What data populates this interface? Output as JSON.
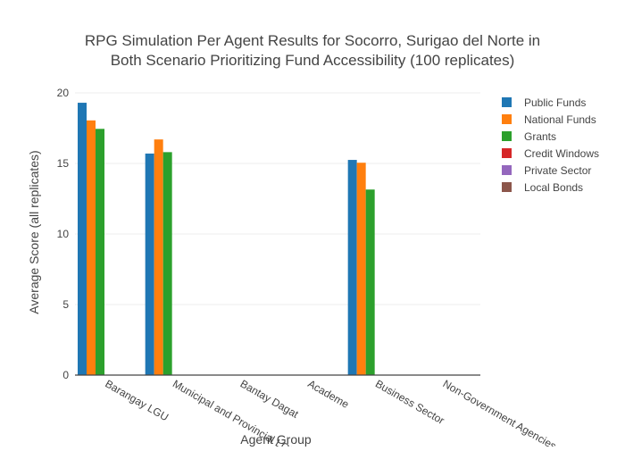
{
  "chart_data": {
    "type": "bar",
    "title_lines": [
      "RPG Simulation Per Agent Results for Socorro, Surigao del Norte in",
      "Both Scenario Prioritizing Fund Accessibility (100 replicates)"
    ],
    "xlabel": "Agent Group",
    "ylabel": "Average Score (all replicates)",
    "ylim": [
      0,
      20
    ],
    "yticks": [
      0,
      5,
      10,
      15,
      20
    ],
    "grid": true,
    "legend_position": "right",
    "categories": [
      "Barangay LGU",
      "Municipal and Provincial LGU",
      "Bantay Dagat",
      "Academe",
      "Business Sector",
      "Non-Government Agencies"
    ],
    "series": [
      {
        "name": "Public Funds",
        "color": "#1f77b4",
        "values": [
          19.3,
          15.7,
          0,
          0,
          15.25,
          0
        ]
      },
      {
        "name": "National Funds",
        "color": "#ff7f0e",
        "values": [
          18.05,
          16.7,
          0,
          0,
          15.05,
          0
        ]
      },
      {
        "name": "Grants",
        "color": "#2ca02c",
        "values": [
          17.45,
          15.8,
          0,
          0,
          13.15,
          0
        ]
      },
      {
        "name": "Credit Windows",
        "color": "#d62728",
        "values": [
          0,
          0,
          0,
          0,
          0,
          0
        ]
      },
      {
        "name": "Private Sector",
        "color": "#9467bd",
        "values": [
          0,
          0,
          0,
          0,
          0,
          0
        ]
      },
      {
        "name": "Local Bonds",
        "color": "#8c564b",
        "values": [
          0,
          0,
          0,
          0,
          0,
          0
        ]
      }
    ]
  }
}
